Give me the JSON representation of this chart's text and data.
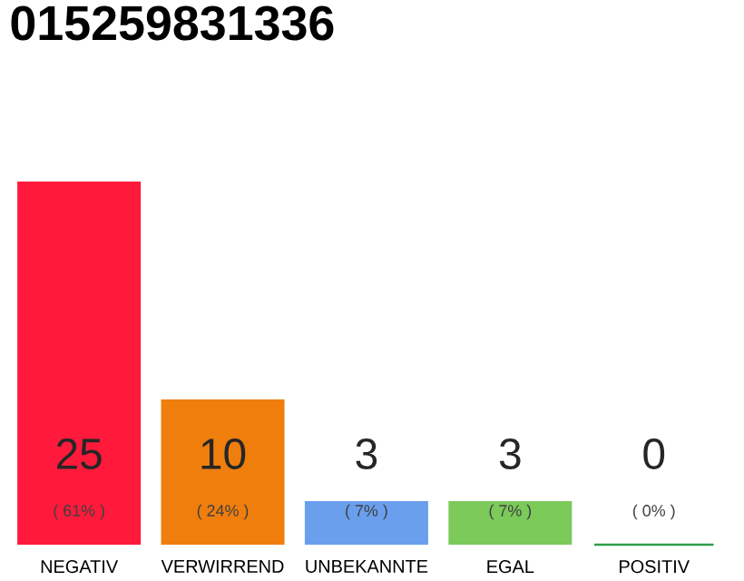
{
  "chart_data": {
    "type": "bar",
    "title": "015259831336",
    "categories": [
      "NEGATIV",
      "VERWIRREND",
      "UNBEKANNTE",
      "EGAL",
      "POSITIV"
    ],
    "values": [
      25,
      10,
      3,
      3,
      0
    ],
    "colors": [
      "#ff1a3c",
      "#f07e0d",
      "#6a9fee",
      "#7bca5a",
      "#2e9e4a"
    ],
    "value_labels": [
      "25",
      "10",
      "3",
      "3",
      "0"
    ],
    "annotations": [
      "( 61% )",
      "( 24% )",
      "( 7% )",
      "( 7% )",
      "( 0% )"
    ]
  }
}
